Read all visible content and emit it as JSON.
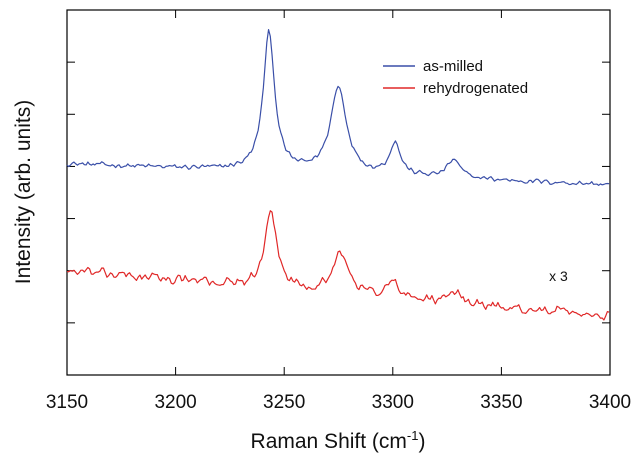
{
  "chart_data": {
    "type": "line",
    "title": "",
    "xlabel": "Raman Shift (cm",
    "xlabel_sup": "-1",
    "xlabel_close": ")",
    "ylabel": "Intensity (arb. units)",
    "xlim": [
      3150,
      3400
    ],
    "ylim": [
      0,
      7
    ],
    "xticks": [
      3150,
      3200,
      3250,
      3300,
      3350,
      3400
    ],
    "y_tick_labels_shown": false,
    "grid": false,
    "legend_position": "top-right",
    "annotation": {
      "text": "x 3",
      "x": 3372,
      "y": 1.8
    },
    "series": [
      {
        "name": "as-milled",
        "color": "#3a4fa8",
        "baseline": 4.05,
        "noise": 0.06,
        "slope": -0.0016,
        "peaks": [
          {
            "center": 3243,
            "height": 2.65,
            "width": 3.2
          },
          {
            "center": 3275,
            "height": 1.65,
            "width": 4.5
          },
          {
            "center": 3301,
            "height": 0.62,
            "width": 3.0
          },
          {
            "center": 3328,
            "height": 0.35,
            "width": 3.5
          }
        ]
      },
      {
        "name": "rehydrogenated",
        "color": "#e02828",
        "baseline": 2.0,
        "noise": 0.11,
        "slope": -0.0035,
        "peaks": [
          {
            "center": 3244,
            "height": 1.45,
            "width": 3.2
          },
          {
            "center": 3276,
            "height": 0.75,
            "width": 4.5
          },
          {
            "center": 3300,
            "height": 0.3,
            "width": 3.0
          },
          {
            "center": 3329,
            "height": 0.22,
            "width": 3.5
          }
        ]
      }
    ]
  }
}
